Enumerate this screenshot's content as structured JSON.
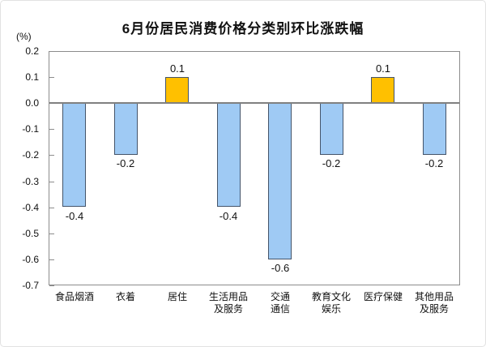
{
  "title": "6月份居民消费价格分类别环比涨跌幅",
  "unit_label": "(%)",
  "chart_data": {
    "type": "bar",
    "title": "6月份居民消费价格分类别环比涨跌幅",
    "xlabel": "",
    "ylabel": "(%)",
    "categories": [
      "食品烟酒",
      "衣着",
      "居住",
      "生活用品\n及服务",
      "交通\n通信",
      "教育文化\n娱乐",
      "医疗保健",
      "其他用品\n及服务"
    ],
    "values": [
      -0.4,
      -0.2,
      0.1,
      -0.4,
      -0.6,
      -0.2,
      0.1,
      -0.2
    ],
    "value_labels": [
      "-0.4",
      "-0.2",
      "0.1",
      "-0.4",
      "-0.6",
      "-0.2",
      "0.1",
      "-0.2"
    ],
    "ylim": [
      -0.7,
      0.2
    ],
    "ytick_labels": [
      "0.2",
      "0.1",
      "0.0",
      "-0.1",
      "-0.2",
      "-0.3",
      "-0.4",
      "-0.5",
      "-0.6",
      "-0.7"
    ],
    "grid": false,
    "legend": null,
    "colors": {
      "positive_bar": "#FFC000",
      "negative_bar": "#9FCAF4",
      "bar_border": "#44546A",
      "axis_line": "#8C8C8C",
      "zero_line": "#808080",
      "text": "#111111"
    }
  }
}
